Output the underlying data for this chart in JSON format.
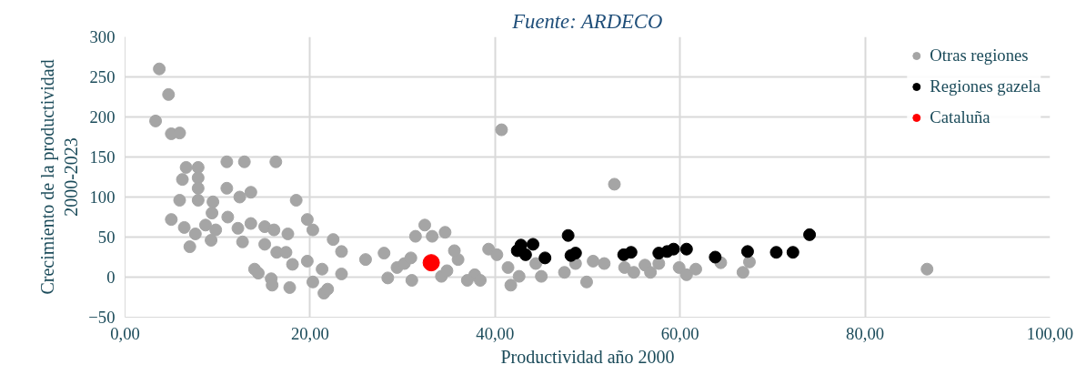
{
  "chart_data": {
    "type": "scatter",
    "title": "Fuente: ARDECO",
    "xlabel": "Productividad año 2000",
    "ylabel": "Crecimiento de la productividad\n2000-2023",
    "xlim": [
      0,
      100
    ],
    "xticks": [
      {
        "value": 0,
        "label": "0,00"
      },
      {
        "value": 20,
        "label": "20,00"
      },
      {
        "value": 40,
        "label": "40,00"
      },
      {
        "value": 60,
        "label": "60,00"
      },
      {
        "value": 80,
        "label": "80,00"
      },
      {
        "value": 100,
        "label": "100,00"
      }
    ],
    "ylim": [
      -50,
      300
    ],
    "yticks": [
      -50,
      0,
      50,
      100,
      150,
      200,
      250,
      300
    ],
    "grid": true,
    "legend": "top right",
    "marker": "circle",
    "series": [
      {
        "name": "Otras regiones",
        "color": "#a5a5a5",
        "x": [
          3.7,
          4.7,
          3.3,
          5.0,
          5.9,
          11,
          12.9,
          16.3,
          6.6,
          7.9,
          6.2,
          7.9,
          7.9,
          11,
          5.9,
          7.9,
          9.5,
          12.4,
          13.6,
          18.5,
          9.4,
          11.1,
          19.7,
          5,
          6.4,
          7.6,
          8.7,
          9.8,
          12.2,
          13.6,
          15.1,
          16.1,
          17.6,
          20.3,
          7,
          9.3,
          12.7,
          15.1,
          16.4,
          17.4,
          18.1,
          19.7,
          22.5,
          23.4,
          14,
          14.4,
          15.8,
          15.9,
          17.8,
          20.3,
          21.3,
          21.5,
          21.9,
          23.4,
          26,
          28,
          28.4,
          29.4,
          30.2,
          30.9,
          32.4,
          31.4,
          33.2,
          34.6,
          34.2,
          34.8,
          36,
          35.6,
          37.8,
          38.4,
          39.3,
          40.2,
          40.7,
          41.4,
          41.7,
          42.6,
          44.4,
          45,
          47.5,
          48.7,
          49.9,
          50.6,
          51.8,
          52.9,
          54,
          55,
          56.2,
          56.8,
          57.7,
          59.9,
          60.7,
          61.7,
          64.4,
          66.8,
          67.5,
          86.7,
          37,
          31
        ],
        "values": [
          260,
          228,
          195,
          179,
          180,
          144,
          144,
          144,
          137,
          137,
          122,
          124,
          111,
          111,
          96,
          96,
          94,
          100,
          106,
          96,
          80,
          75,
          72,
          72,
          62,
          54,
          65,
          59,
          61,
          67,
          63,
          59,
          54,
          59,
          38,
          46,
          44,
          41,
          31,
          31,
          16,
          20,
          47,
          32,
          10,
          5,
          -2,
          -10,
          -13,
          -6,
          10,
          -20,
          -15,
          4,
          22,
          30,
          -1,
          12,
          17,
          24,
          65,
          51,
          51,
          56,
          1,
          8,
          22,
          33,
          3,
          -4,
          35,
          28,
          184,
          12,
          -10,
          1,
          17,
          1,
          6,
          17,
          -6,
          20,
          17,
          116,
          12,
          6,
          15,
          6,
          17,
          12,
          3,
          10,
          18,
          6,
          19,
          10,
          -4,
          -4
        ]
      },
      {
        "name": "Regiones gazela",
        "color": "#000000",
        "x": [
          42.4,
          42.8,
          44.1,
          43.3,
          45.4,
          47.9,
          48.2,
          48.7,
          53.9,
          54.7,
          57.7,
          58.6,
          59.3,
          60.7,
          63.8,
          67.3,
          70.4,
          72.2,
          74
        ],
        "values": [
          33,
          40,
          41,
          28,
          24,
          52,
          27,
          30,
          28,
          31,
          30,
          32,
          35,
          35,
          25,
          32,
          31,
          31,
          53
        ]
      },
      {
        "name": "Cataluña",
        "color": "#ff0000",
        "x": [
          33.1
        ],
        "values": [
          18
        ]
      }
    ]
  }
}
